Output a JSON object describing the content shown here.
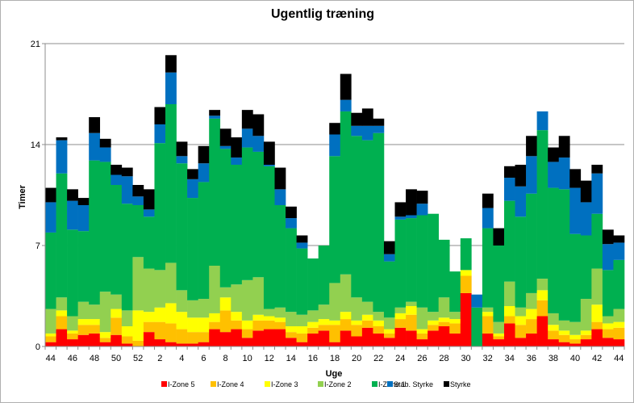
{
  "chart_data": {
    "type": "bar",
    "stacked": true,
    "title": "Ugentlig træning",
    "xlabel": "Uge",
    "ylabel": "Timer",
    "ylim": [
      0,
      21
    ],
    "yticks": [
      0,
      7,
      14,
      21
    ],
    "grid": true,
    "legend_position": "bottom",
    "categories": [
      44,
      45,
      46,
      47,
      48,
      49,
      50,
      51,
      52,
      1,
      2,
      3,
      4,
      5,
      6,
      7,
      8,
      9,
      10,
      11,
      12,
      13,
      14,
      15,
      16,
      17,
      18,
      19,
      20,
      21,
      22,
      23,
      24,
      25,
      26,
      27,
      28,
      29,
      30,
      31,
      32,
      33,
      34,
      35,
      36,
      37,
      38,
      39,
      40,
      41,
      42,
      43,
      44
    ],
    "tick_labels": [
      "44",
      "",
      "46",
      "",
      "48",
      "",
      "50",
      "",
      "52",
      "",
      "2",
      "",
      "4",
      "",
      "6",
      "",
      "8",
      "",
      "10",
      "",
      "12",
      "",
      "14",
      "",
      "16",
      "",
      "18",
      "",
      "20",
      "",
      "22",
      "",
      "24",
      "",
      "26",
      "",
      "28",
      "",
      "30",
      "",
      "32",
      "",
      "34",
      "",
      "36",
      "",
      "38",
      "",
      "40",
      "",
      "42",
      "",
      "44"
    ],
    "series": [
      {
        "name": "I-Zone 5",
        "color": "#ff0000",
        "values": [
          0.3,
          1.2,
          0.5,
          0.8,
          0.9,
          0.3,
          0.8,
          0.2,
          0,
          1.0,
          0.5,
          0.3,
          0.2,
          0.2,
          0.3,
          1.2,
          1.0,
          1.2,
          0.6,
          1.1,
          1.2,
          1.2,
          0.6,
          0.3,
          0.9,
          1.1,
          0.3,
          1.1,
          0.7,
          1.3,
          0.9,
          0.6,
          1.3,
          1.1,
          0.5,
          1.1,
          1.4,
          0.9,
          3.7,
          0,
          0.9,
          0.5,
          1.6,
          0.6,
          0.9,
          2.1,
          0.5,
          0.3,
          0.2,
          0.5,
          1.2,
          0.6,
          0.5
        ]
      },
      {
        "name": "I-Zone 4",
        "color": "#ffc000",
        "values": [
          0.4,
          0.9,
          0.4,
          0.7,
          0.6,
          0.3,
          1.2,
          0.5,
          0.4,
          0.7,
          1.2,
          1.3,
          1.0,
          0.8,
          0.7,
          0.5,
          1.5,
          0.6,
          0.6,
          0.7,
          0.6,
          0.5,
          0.4,
          0.6,
          0.4,
          0.4,
          1.2,
          0.8,
          0.8,
          0.5,
          0.5,
          0.3,
          0.6,
          1.1,
          0.4,
          0.4,
          0.3,
          0.7,
          1.2,
          0,
          1.2,
          0.2,
          0.5,
          0.9,
          1.0,
          1.1,
          0.6,
          0.5,
          0.3,
          0.3,
          0.5,
          0.6,
          0.8
        ]
      },
      {
        "name": "I-Zone 3",
        "color": "#ffff00",
        "values": [
          0.2,
          0.4,
          0.2,
          0.4,
          0.4,
          0.4,
          0.6,
          0.7,
          2.1,
          0.7,
          1.0,
          1.4,
          1.2,
          1.0,
          1.0,
          0.6,
          0.9,
          0.6,
          0.6,
          0.4,
          0.3,
          0.3,
          0.4,
          0.5,
          0.4,
          0.4,
          0.3,
          0.5,
          0.3,
          0.4,
          0.4,
          0.3,
          0.4,
          0.6,
          0.3,
          0.3,
          0.3,
          0.3,
          0.4,
          0,
          0.3,
          0.2,
          0.7,
          0.6,
          0.7,
          0.7,
          0.4,
          0.3,
          0.3,
          0.3,
          1.2,
          0.4,
          0.4
        ]
      },
      {
        "name": "I-Zone 2",
        "color": "#92d050",
        "values": [
          1.7,
          0.9,
          1.0,
          1.2,
          1.0,
          2.8,
          1.0,
          1.1,
          3.7,
          3.0,
          2.6,
          2.8,
          1.5,
          1.2,
          1.3,
          3.3,
          0.7,
          1.9,
          2.8,
          2.6,
          0.5,
          0.7,
          1.0,
          0.8,
          0.8,
          1.0,
          2.6,
          2.6,
          1.6,
          0.9,
          0.6,
          0.8,
          0.4,
          0.3,
          1.5,
          0.6,
          1.4,
          0.5,
          0,
          0,
          0.3,
          0.8,
          1.7,
          0.6,
          1.1,
          0.8,
          0.8,
          0.7,
          0.9,
          2.2,
          2.5,
          0.5,
          0.9
        ]
      },
      {
        "name": "I-Zone 1",
        "color": "#00b050",
        "values": [
          5.3,
          8.6,
          6.0,
          4.9,
          10.0,
          9.0,
          7.6,
          7.4,
          3.6,
          3.6,
          8.8,
          11.0,
          8.8,
          7.1,
          8.1,
          10.2,
          9.6,
          8.3,
          9.2,
          8.7,
          9.9,
          7.1,
          5.8,
          4.6,
          3.6,
          4.1,
          8.8,
          11.3,
          11.2,
          11.2,
          12.4,
          3.9,
          6.1,
          5.8,
          6.4,
          6.8,
          4.0,
          2.8,
          2.2,
          2.7,
          5.5,
          5.3,
          5.6,
          6.3,
          6.9,
          10.3,
          8.7,
          9.1,
          6.1,
          4.4,
          3.8,
          3.2,
          3.4
        ]
      },
      {
        "name": "Stab. Styrke",
        "color": "#0070c0",
        "values": [
          2.1,
          2.3,
          2.0,
          1.8,
          1.9,
          1.0,
          0.7,
          1.9,
          0.6,
          0.5,
          1.3,
          2.2,
          0.5,
          1.3,
          1.3,
          0.2,
          0.2,
          0.5,
          1.3,
          1.1,
          0.1,
          1.1,
          0.7,
          0.4,
          0,
          0,
          1.5,
          0.8,
          0.7,
          1.0,
          0.5,
          0.5,
          0.2,
          0.2,
          0.8,
          0,
          0,
          0,
          0,
          0.9,
          1.4,
          0,
          1.6,
          2.1,
          2.6,
          1.3,
          1.8,
          2.2,
          3.2,
          2.3,
          2.8,
          1.8,
          1.2
        ]
      },
      {
        "name": "Styrke",
        "color": "#000000",
        "values": [
          1.0,
          0.2,
          0.8,
          0.5,
          1.1,
          0.6,
          0.7,
          0.6,
          0.8,
          1.4,
          1.2,
          1.2,
          1.0,
          0.7,
          1.2,
          0.4,
          1.2,
          1.4,
          1.3,
          1.5,
          1.6,
          1.5,
          0.8,
          0.5,
          0,
          0,
          0.8,
          1.8,
          0.9,
          1.2,
          0.5,
          0.9,
          1.0,
          1.8,
          0.9,
          0,
          0,
          0,
          0,
          0,
          1.0,
          1.2,
          0.8,
          1.5,
          1.4,
          0,
          1.0,
          1.5,
          1.3,
          1.5,
          0.6,
          1.0,
          0.5
        ]
      }
    ]
  }
}
